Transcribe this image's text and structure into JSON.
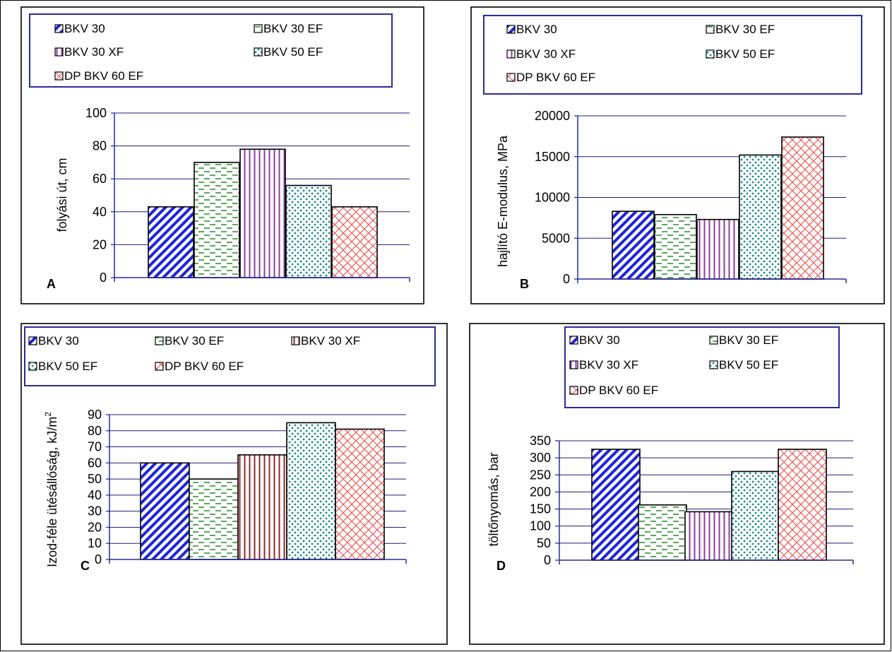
{
  "colors": {
    "BKV 30": "#1e24d8",
    "BKV 30 EF": "#2a8a2a",
    "BKV 30 XF": "#8e3c9e",
    "BKV 50 EF": "#138a86",
    "DP BKV 60 EF": "#ef4a4a",
    "BKV 30 XF (C)": "#8e2a2a",
    "axis": "#2b2b9a",
    "grid": "#1f1f7a"
  },
  "patterns": {
    "BKV 30": "diagonal-stripes",
    "BKV 30 EF": "horizontal-dashes",
    "BKV 30 XF": "vertical-stripes",
    "BKV 50 EF": "dots",
    "DP BKV 60 EF": "crosshatch"
  },
  "chart_data": [
    {
      "panel": "A",
      "type": "bar",
      "categories": [
        "BKV 30",
        "BKV 30 EF",
        "BKV 30 XF",
        "BKV 50 EF",
        "DP BKV 60 EF"
      ],
      "values": [
        43,
        70,
        78,
        56,
        43
      ],
      "ylabel": "folyási út, cm",
      "ylim": [
        0,
        100
      ],
      "yticks": [
        "0",
        "20",
        "40",
        "60",
        "80",
        "100"
      ],
      "legend": [
        "BKV 30",
        "BKV 30 EF",
        "BKV 30 XF",
        "BKV 50 EF",
        "DP BKV 60 EF"
      ],
      "grid": true,
      "legend_position": "top"
    },
    {
      "panel": "B",
      "type": "bar",
      "categories": [
        "BKV 30",
        "BKV 30 EF",
        "BKV 30 XF",
        "BKV 50 EF",
        "DP BKV 60 EF"
      ],
      "values": [
        8300,
        7900,
        7300,
        15200,
        17400
      ],
      "ylabel": "hajlító E-modulus, MPa",
      "ylim": [
        0,
        20000
      ],
      "yticks": [
        "0",
        "5000",
        "10000",
        "15000",
        "20000"
      ],
      "legend": [
        "BKV 30",
        "BKV 30 EF",
        "BKV 30 XF",
        "BKV 50 EF",
        "DP BKV 60 EF"
      ],
      "grid": true,
      "legend_position": "top"
    },
    {
      "panel": "C",
      "type": "bar",
      "categories": [
        "BKV 30",
        "BKV 30 EF",
        "BKV 30 XF",
        "BKV 50 EF",
        "DP BKV 60 EF"
      ],
      "values": [
        60,
        50,
        65,
        85,
        81
      ],
      "ylabel": "Izod-féle ütésállóság, kJ/m",
      "ylabel_sup": "2",
      "ylim": [
        0,
        90
      ],
      "yticks": [
        "0",
        "10",
        "20",
        "30",
        "40",
        "50",
        "60",
        "70",
        "80",
        "90"
      ],
      "legend": [
        "BKV 30",
        "BKV 30 EF",
        "BKV 30 XF",
        "BKV 50 EF",
        "DP BKV 60 EF"
      ],
      "grid": true,
      "legend_position": "top"
    },
    {
      "panel": "D",
      "type": "bar",
      "categories": [
        "BKV 30",
        "BKV 30 EF",
        "BKV 30 XF",
        "BKV 50 EF",
        "DP BKV 60 EF"
      ],
      "values": [
        325,
        162,
        142,
        260,
        325
      ],
      "ylabel": "töltőnyomás, bar",
      "ylim": [
        0,
        350
      ],
      "yticks": [
        "0",
        "50",
        "100",
        "150",
        "200",
        "250",
        "300",
        "350"
      ],
      "legend": [
        "BKV 30",
        "BKV 30 EF",
        "BKV 30 XF",
        "BKV 50 EF",
        "DP BKV 60 EF"
      ],
      "grid": true,
      "legend_position": "top"
    }
  ]
}
